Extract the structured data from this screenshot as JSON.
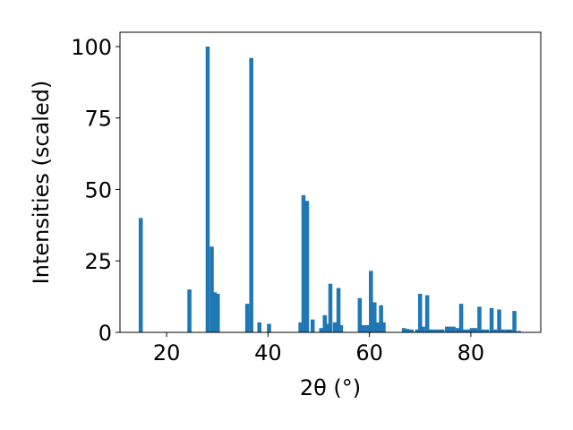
{
  "chart_data": {
    "type": "bar",
    "xlabel": "2θ (°)",
    "ylabel": "Intensities (scaled)",
    "xlim": [
      10.8,
      93.8
    ],
    "ylim": [
      0,
      105
    ],
    "xticks": [
      20,
      40,
      60,
      80
    ],
    "yticks": [
      0,
      25,
      50,
      75,
      100
    ],
    "bar_color": "#1f77b4",
    "bar_width": 0.8,
    "x": [
      14.9,
      24.5,
      28.1,
      28.9,
      29.5,
      30.1,
      35.9,
      36.7,
      38.3,
      40.2,
      46.4,
      47.0,
      47.7,
      48.8,
      50.5,
      51.2,
      51.8,
      52.3,
      53.2,
      53.9,
      54.4,
      58.1,
      58.8,
      59.6,
      60.3,
      61.0,
      61.6,
      62.3,
      62.8,
      66.8,
      67.5,
      68.3,
      69.4,
      70.0,
      70.6,
      71.4,
      72.1,
      72.9,
      73.7,
      74.4,
      75.3,
      75.9,
      76.6,
      77.4,
      78.1,
      78.7,
      79.5,
      80.2,
      80.9,
      81.7,
      82.4,
      83.2,
      84.1,
      84.8,
      85.6,
      86.3,
      87.1,
      87.8,
      88.6,
      89.5
    ],
    "values": [
      40,
      15,
      100,
      30,
      14,
      13.5,
      10,
      96,
      3.5,
      3,
      3.5,
      48,
      46,
      4.5,
      1.5,
      6,
      3,
      17,
      3.5,
      15.5,
      2.5,
      12,
      2.5,
      2.5,
      21.5,
      10.5,
      3.5,
      9.5,
      3.5,
      1.5,
      1.2,
      1.0,
      1.0,
      13.5,
      2.0,
      13.0,
      1.0,
      1.0,
      1.0,
      1.0,
      2.0,
      2.0,
      2.0,
      1.5,
      10.0,
      1.0,
      1.0,
      1.5,
      1.5,
      9.0,
      1.0,
      1.0,
      8.5,
      1.0,
      8.0,
      1.0,
      1.0,
      1.0,
      7.5,
      0.5
    ]
  }
}
